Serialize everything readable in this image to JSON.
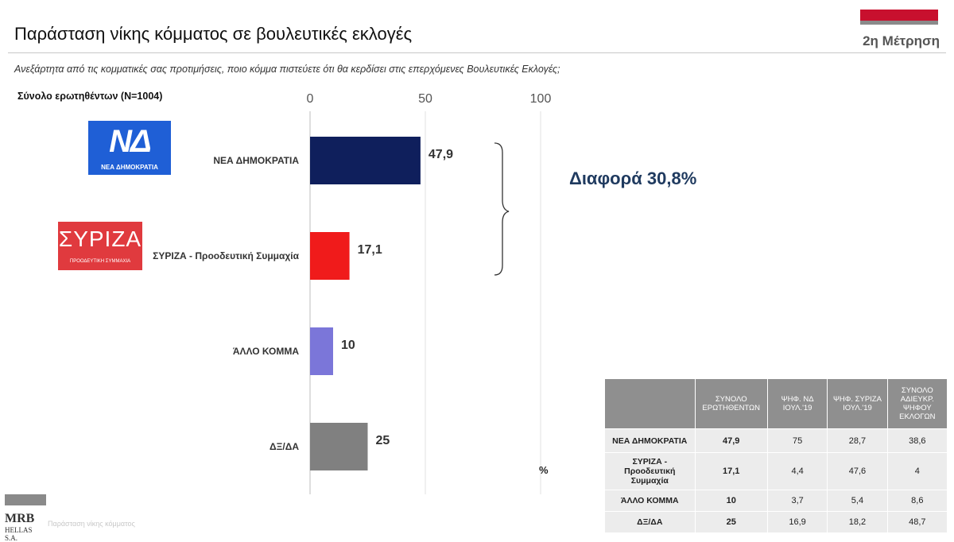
{
  "header": {
    "title": "Παράσταση νίκης κόμματος σε βουλευτικές εκλογές",
    "measurement": "2η Μέτρηση",
    "question": "Ανεξάρτητα από τις κομματικές σας προτιμήσεις, ποιο κόμμα πιστεύετε ότι θα κερδίσει στις επερχόμενες Βουλευτικές Εκλογές;",
    "base": "Σύνολο ερωτηθέντων (N=1004)"
  },
  "logos": {
    "nd_glyph": "ΝΔ",
    "nd_sub": "ΝΕΑ ΔΗΜΟΚΡΑΤΙΑ",
    "syriza_glyph": "ΣΥΡΙΖΑ",
    "syriza_sub": "ΠΡΟΟΔΕΥΤΙΚΗ ΣΥΜΜΑΧΙΑ",
    "mrb": "MRB",
    "mrb_sub": "HELLAS S.A."
  },
  "difference_label": "Διαφορά 30,8%",
  "unit_label": "%",
  "footer_text": "Παράσταση νίκης κόμματος",
  "colors": {
    "nd": "#0f1f5c",
    "syriza": "#f01b1b",
    "other": "#7b76d9",
    "dk": "#808080"
  },
  "chart_data": {
    "type": "bar",
    "orientation": "horizontal",
    "categories": [
      "ΝΕΑ ΔΗΜΟΚΡΑΤΙΑ",
      "ΣΥΡΙΖΑ - Προοδευτική Συμμαχία",
      "ΆΛΛΟ ΚΟΜΜΑ",
      "ΔΞ/ΔΑ"
    ],
    "values": [
      47.9,
      17.1,
      10,
      25
    ],
    "value_labels": [
      "47,9",
      "17,1",
      "10",
      "25"
    ],
    "xlim": [
      0,
      100
    ],
    "xticks": [
      0,
      50,
      100
    ],
    "grid": true,
    "title": "Παράσταση νίκης κόμματος σε βουλευτικές εκλογές",
    "xlabel": "%",
    "ylabel": ""
  },
  "table": {
    "headers": [
      "",
      "ΣΥΝΟΛΟ ΕΡΩΤΗΘΕΝΤΩΝ",
      "ΨΗΦ. ΝΔ ΙΟΥΛ.'19",
      "ΨΗΦ. ΣΥΡΙΖΑ ΙΟΥΛ.'19",
      "ΣΥΝΟΛΟ ΑΔΙΕΥΚΡ. ΨΗΦΟΥ ΕΚΛΟΓΩΝ"
    ],
    "rows": [
      [
        "ΝΕΑ ΔΗΜΟΚΡΑΤΙΑ",
        "47,9",
        "75",
        "28,7",
        "38,6"
      ],
      [
        "ΣΥΡΙΖΑ - Προοδευτική Συμμαχία",
        "17,1",
        "4,4",
        "47,6",
        "4"
      ],
      [
        "ΆΛΛΟ ΚΟΜΜΑ",
        "10",
        "3,7",
        "5,4",
        "8,6"
      ],
      [
        "ΔΞ/ΔΑ",
        "25",
        "16,9",
        "18,2",
        "48,7"
      ]
    ]
  }
}
